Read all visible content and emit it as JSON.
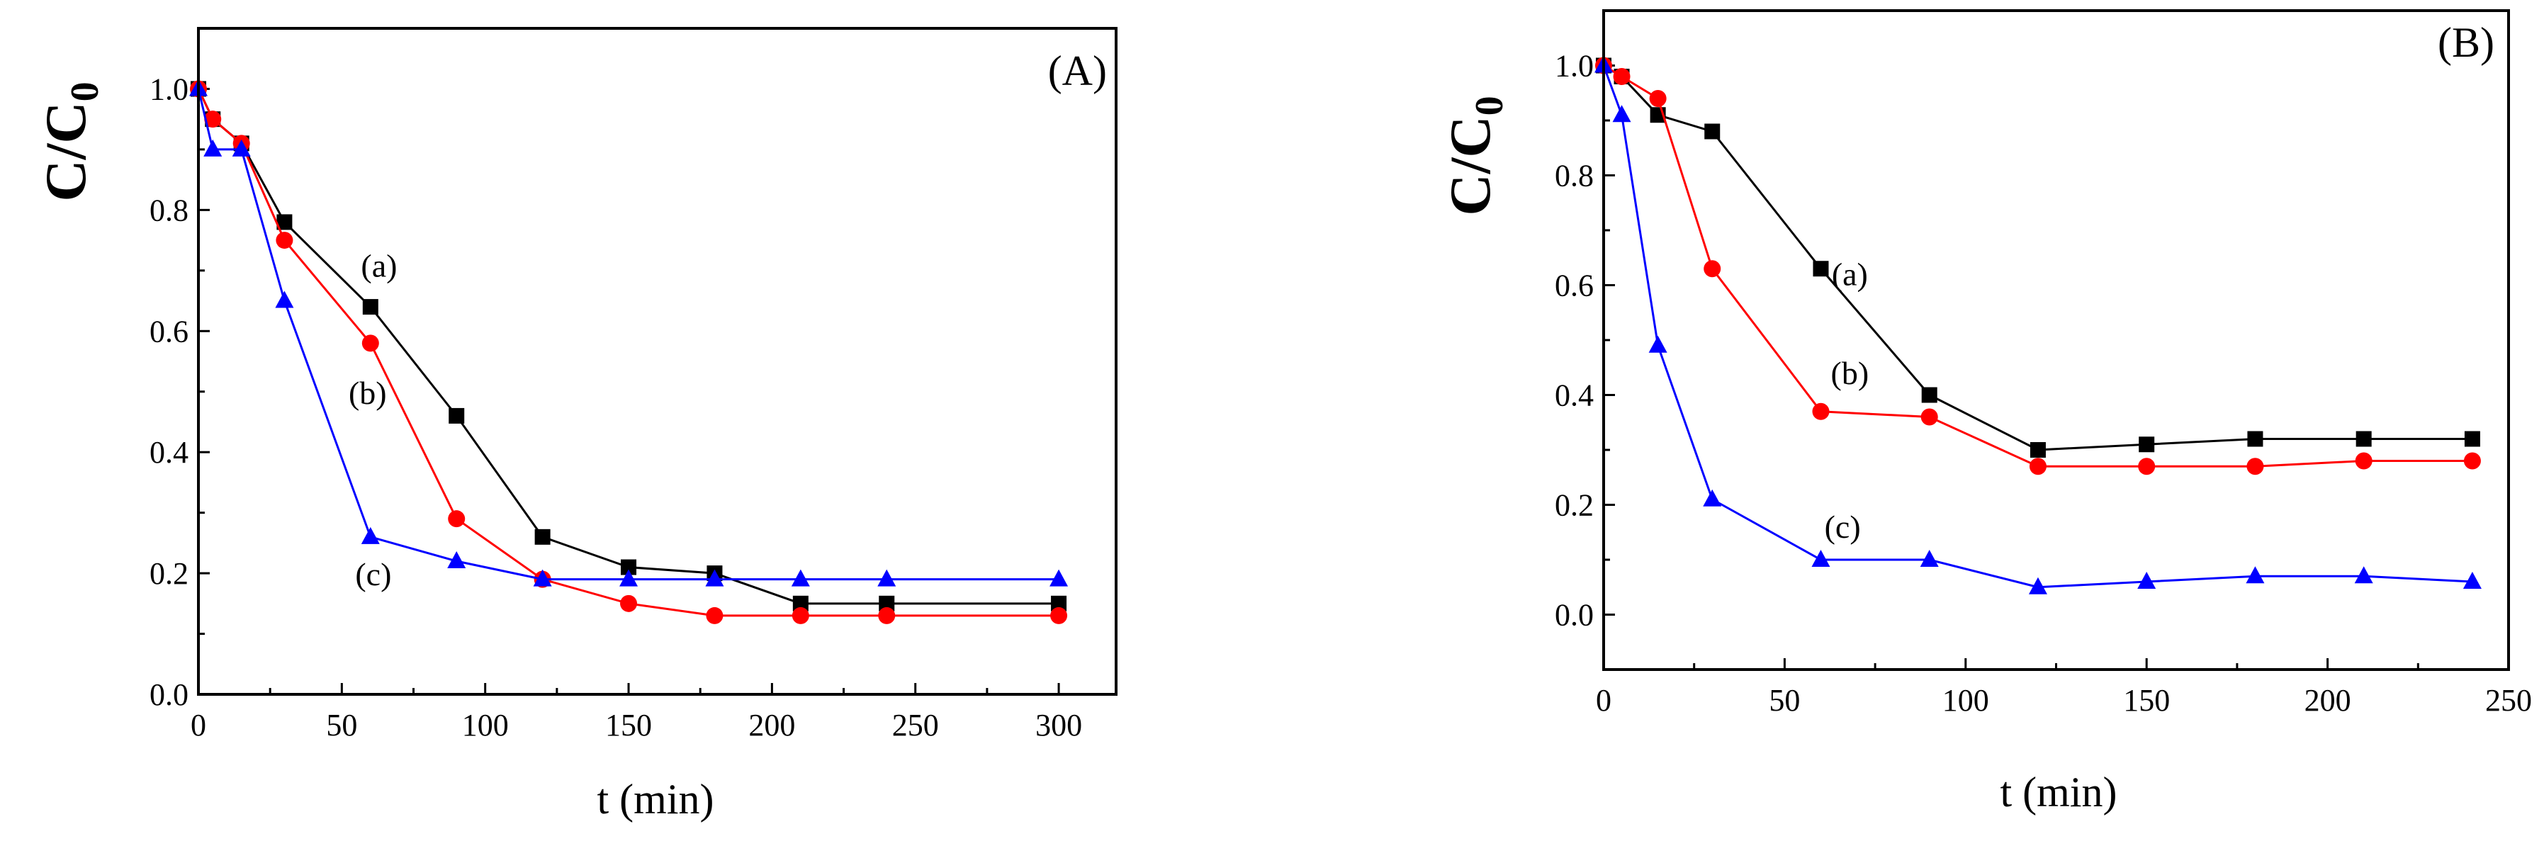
{
  "chart_data": [
    {
      "type": "line",
      "panel_label": "(A)",
      "xlabel": "t (min)",
      "ylabel": {
        "main": "C/C",
        "sub": "0"
      },
      "xlim": [
        0,
        320
      ],
      "ylim": [
        0,
        1.1
      ],
      "xticks": [
        0,
        50,
        100,
        150,
        200,
        250,
        300
      ],
      "yticks": [
        0.0,
        0.2,
        0.4,
        0.6,
        0.8,
        1.0
      ],
      "xtick_labels": [
        "0",
        "50",
        "100",
        "150",
        "200",
        "250",
        "300"
      ],
      "ytick_labels": [
        "0.0",
        "0.2",
        "0.4",
        "0.6",
        "0.8",
        "1.0"
      ],
      "series": [
        {
          "name": "(a)",
          "color": "#000000",
          "marker": "square",
          "x": [
            0,
            5,
            15,
            30,
            60,
            90,
            120,
            150,
            180,
            210,
            240,
            300
          ],
          "y": [
            1.0,
            0.95,
            0.91,
            0.78,
            0.64,
            0.46,
            0.26,
            0.21,
            0.2,
            0.15,
            0.15,
            0.15
          ]
        },
        {
          "name": "(b)",
          "color": "#ff0000",
          "marker": "circle",
          "x": [
            0,
            5,
            15,
            30,
            60,
            90,
            120,
            150,
            180,
            210,
            240,
            300
          ],
          "y": [
            1.0,
            0.95,
            0.91,
            0.75,
            0.58,
            0.29,
            0.19,
            0.15,
            0.13,
            0.13,
            0.13,
            0.13
          ]
        },
        {
          "name": "(c)",
          "color": "#0000ff",
          "marker": "triangle",
          "x": [
            0,
            5,
            15,
            30,
            60,
            90,
            120,
            150,
            180,
            210,
            240,
            300
          ],
          "y": [
            1.0,
            0.9,
            0.9,
            0.65,
            0.26,
            0.22,
            0.19,
            0.19,
            0.19,
            0.19,
            0.19,
            0.19
          ]
        }
      ],
      "annotations": [
        {
          "text": "(a)",
          "x": 63,
          "y": 0.69
        },
        {
          "text": "(b)",
          "x": 59,
          "y": 0.48
        },
        {
          "text": "(c)",
          "x": 61,
          "y": 0.18
        }
      ]
    },
    {
      "type": "line",
      "panel_label": "(B)",
      "xlabel": "t (min)",
      "ylabel": {
        "main": "C/C",
        "sub": "0"
      },
      "xlim": [
        0,
        250
      ],
      "ylim": [
        -0.1,
        1.1
      ],
      "xticks": [
        0,
        50,
        100,
        150,
        200,
        250
      ],
      "yticks": [
        0.0,
        0.2,
        0.4,
        0.6,
        0.8,
        1.0
      ],
      "xtick_labels": [
        "0",
        "50",
        "100",
        "150",
        "200",
        "250"
      ],
      "ytick_labels": [
        "0.0",
        "0.2",
        "0.4",
        "0.6",
        "0.8",
        "1.0"
      ],
      "series": [
        {
          "name": "(a)",
          "color": "#000000",
          "marker": "square",
          "x": [
            0,
            5,
            15,
            30,
            60,
            90,
            120,
            150,
            180,
            210,
            240
          ],
          "y": [
            1.0,
            0.98,
            0.91,
            0.88,
            0.63,
            0.4,
            0.3,
            0.31,
            0.32,
            0.32,
            0.32
          ]
        },
        {
          "name": "(b)",
          "color": "#ff0000",
          "marker": "circle",
          "x": [
            0,
            5,
            15,
            30,
            60,
            90,
            120,
            150,
            180,
            210,
            240
          ],
          "y": [
            1.0,
            0.98,
            0.94,
            0.63,
            0.37,
            0.36,
            0.27,
            0.27,
            0.27,
            0.28,
            0.28
          ]
        },
        {
          "name": "(c)",
          "color": "#0000ff",
          "marker": "triangle",
          "x": [
            0,
            5,
            15,
            30,
            60,
            90,
            120,
            150,
            180,
            210,
            240
          ],
          "y": [
            1.0,
            0.91,
            0.49,
            0.21,
            0.1,
            0.1,
            0.05,
            0.06,
            0.07,
            0.07,
            0.06
          ]
        }
      ],
      "annotations": [
        {
          "text": "(a)",
          "x": 68,
          "y": 0.6
        },
        {
          "text": "(b)",
          "x": 68,
          "y": 0.42
        },
        {
          "text": "(c)",
          "x": 66,
          "y": 0.14
        }
      ]
    }
  ]
}
